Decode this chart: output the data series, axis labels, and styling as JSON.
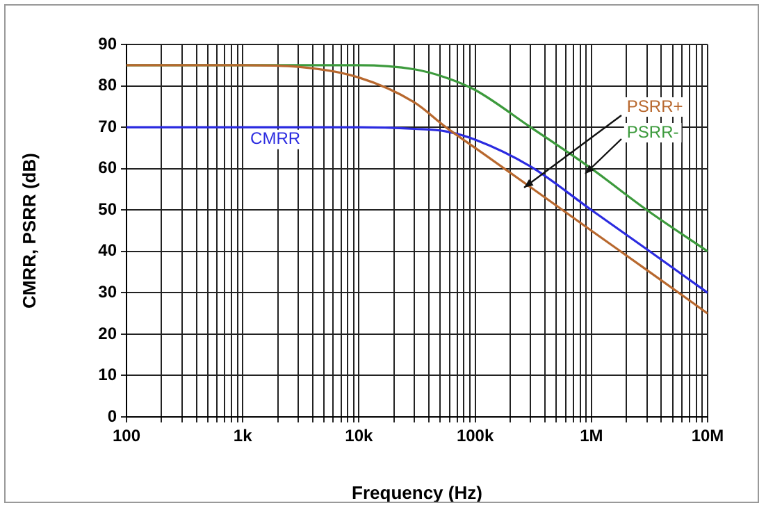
{
  "chart_data": {
    "type": "line",
    "xlabel": "Frequency (Hz)",
    "ylabel": "CMRR, PSRR (dB)",
    "x": [
      100,
      1000,
      3000,
      10000,
      30000,
      56000,
      100000,
      300000,
      1000000,
      3000000,
      10000000
    ],
    "series": [
      {
        "name": "PSRR+",
        "color": "#b8682e",
        "values": [
          85,
          85,
          84.6,
          82,
          76,
          70,
          65,
          55.5,
          45,
          35.5,
          25
        ]
      },
      {
        "name": "PSRR-",
        "color": "#3c9a3c",
        "values": [
          85,
          85,
          85,
          85,
          84,
          82,
          79,
          70,
          60,
          50,
          40
        ]
      },
      {
        "name": "CMRR",
        "color": "#2b2be0",
        "values": [
          70,
          70,
          70,
          70,
          69.6,
          69,
          67,
          60.5,
          50,
          40.5,
          30
        ]
      }
    ],
    "log": "x",
    "xlim": [
      100,
      10000000
    ],
    "xticks": [
      {
        "value": 100,
        "label": "100"
      },
      {
        "value": 200,
        "label": null
      },
      {
        "value": 300,
        "label": null
      },
      {
        "value": 400,
        "label": null
      },
      {
        "value": 500,
        "label": null
      },
      {
        "value": 600,
        "label": null
      },
      {
        "value": 700,
        "label": null
      },
      {
        "value": 800,
        "label": null
      },
      {
        "value": 900,
        "label": null
      },
      {
        "value": 1000,
        "label": "1k"
      },
      {
        "value": 2000,
        "label": null
      },
      {
        "value": 3000,
        "label": null
      },
      {
        "value": 4000,
        "label": null
      },
      {
        "value": 5000,
        "label": null
      },
      {
        "value": 6000,
        "label": null
      },
      {
        "value": 7000,
        "label": null
      },
      {
        "value": 8000,
        "label": null
      },
      {
        "value": 9000,
        "label": null
      },
      {
        "value": 10000,
        "label": "10k"
      },
      {
        "value": 20000,
        "label": null
      },
      {
        "value": 30000,
        "label": null
      },
      {
        "value": 40000,
        "label": null
      },
      {
        "value": 50000,
        "label": null
      },
      {
        "value": 60000,
        "label": null
      },
      {
        "value": 70000,
        "label": null
      },
      {
        "value": 80000,
        "label": null
      },
      {
        "value": 90000,
        "label": null
      },
      {
        "value": 100000,
        "label": "100k"
      },
      {
        "value": 200000,
        "label": null
      },
      {
        "value": 300000,
        "label": null
      },
      {
        "value": 400000,
        "label": null
      },
      {
        "value": 500000,
        "label": null
      },
      {
        "value": 600000,
        "label": null
      },
      {
        "value": 700000,
        "label": null
      },
      {
        "value": 800000,
        "label": null
      },
      {
        "value": 900000,
        "label": null
      },
      {
        "value": 1000000,
        "label": "1M"
      },
      {
        "value": 2000000,
        "label": null
      },
      {
        "value": 3000000,
        "label": null
      },
      {
        "value": 4000000,
        "label": null
      },
      {
        "value": 5000000,
        "label": null
      },
      {
        "value": 6000000,
        "label": null
      },
      {
        "value": 7000000,
        "label": null
      },
      {
        "value": 8000000,
        "label": null
      },
      {
        "value": 9000000,
        "label": null
      },
      {
        "value": 10000000,
        "label": "10M"
      }
    ],
    "ylim": [
      0,
      90
    ],
    "yticks": [
      0,
      10,
      20,
      30,
      40,
      50,
      60,
      70,
      80,
      90
    ],
    "grid": true,
    "legend": false,
    "marker": "none",
    "line_style": "solid"
  }
}
